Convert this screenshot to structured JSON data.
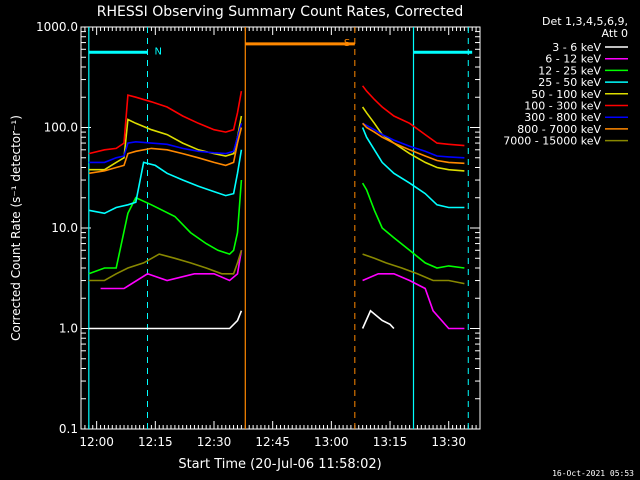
{
  "chart_data": {
    "type": "line",
    "title": "RHESSI Observing Summary Count Rates, Corrected",
    "xlabel": "Start Time (20-Jul-06 11:58:02)",
    "ylabel": "Corrected Count Rate (s⁻¹ detector⁻¹)",
    "y_scale": "log",
    "ylim": [
      0.1,
      1000
    ],
    "xlim": [
      "11:56",
      "13:38"
    ],
    "x_ticks": [
      "12:00",
      "12:15",
      "12:30",
      "12:45",
      "13:00",
      "13:15",
      "13:30"
    ],
    "y_ticks": [
      "0.1",
      "1.0",
      "10.0",
      "100.0",
      "1000.0"
    ],
    "legend_header": [
      "Det 1,3,4,5,6,9,",
      "Att 0"
    ],
    "legend_position": "right",
    "timestamp": "16-Oct-2021 05:53",
    "series": [
      {
        "name": "3 - 6 keV",
        "color": "#ffffff",
        "segments": [
          [
            [
              "11:58",
              1.0
            ],
            [
              "12:03",
              1.0
            ],
            [
              "12:09",
              1.0
            ],
            [
              "12:13",
              1.0
            ],
            [
              "12:13.5",
              1.0
            ],
            [
              "12:20",
              1.0
            ],
            [
              "12:25",
              1.0
            ],
            [
              "12:30",
              1.0
            ],
            [
              "12:34",
              1.0
            ],
            [
              "12:36",
              1.2
            ],
            [
              "12:37",
              1.5
            ]
          ],
          [
            [
              "13:08",
              1.0
            ],
            [
              "13:10",
              1.5
            ],
            [
              "13:13",
              1.2
            ],
            [
              "13:15",
              1.1
            ],
            [
              "13:16",
              1.0
            ]
          ]
        ]
      },
      {
        "name": "6 - 12 keV",
        "color": "#ff00ff",
        "segments": [
          [
            [
              "12:01",
              2.5
            ],
            [
              "12:07",
              2.5
            ],
            [
              "12:13",
              3.5
            ],
            [
              "12:18",
              3.0
            ],
            [
              "12:25",
              3.5
            ],
            [
              "12:30",
              3.5
            ],
            [
              "12:34",
              3.0
            ],
            [
              "12:36",
              3.5
            ],
            [
              "12:37",
              6
            ]
          ],
          [
            [
              "13:08",
              3.0
            ],
            [
              "13:12",
              3.5
            ],
            [
              "13:16",
              3.5
            ],
            [
              "13:20",
              3.0
            ],
            [
              "13:24",
              2.5
            ],
            [
              "13:26",
              1.5
            ],
            [
              "13:30",
              1.0
            ],
            [
              "13:34",
              1.0
            ]
          ]
        ]
      },
      {
        "name": "12 - 25 keV",
        "color": "#00ff00",
        "segments": [
          [
            [
              "11:58",
              3.5
            ],
            [
              "12:02",
              4.0
            ],
            [
              "12:05",
              4.0
            ],
            [
              "12:08",
              14
            ],
            [
              "12:10",
              20
            ],
            [
              "12:14",
              17
            ],
            [
              "12:20",
              13
            ],
            [
              "12:24",
              9
            ],
            [
              "12:28",
              7
            ],
            [
              "12:31",
              6
            ],
            [
              "12:34",
              5.5
            ],
            [
              "12:35",
              6
            ],
            [
              "12:36",
              9
            ],
            [
              "12:37",
              30
            ]
          ],
          [
            [
              "13:08",
              28
            ],
            [
              "13:09",
              24
            ],
            [
              "13:11",
              15
            ],
            [
              "13:13",
              10
            ],
            [
              "13:16",
              8
            ],
            [
              "13:20",
              6
            ],
            [
              "13:24",
              4.5
            ],
            [
              "13:27",
              4
            ],
            [
              "13:30",
              4.2
            ],
            [
              "13:34",
              4.0
            ]
          ]
        ]
      },
      {
        "name": "25 - 50 keV",
        "color": "#00ffff",
        "segments": [
          [
            [
              "11:58",
              15
            ],
            [
              "12:02",
              14
            ],
            [
              "12:05",
              16
            ],
            [
              "12:08",
              17
            ],
            [
              "12:10",
              18
            ],
            [
              "12:12",
              45
            ],
            [
              "12:15",
              42
            ],
            [
              "12:18",
              35
            ],
            [
              "12:22",
              30
            ],
            [
              "12:26",
              26
            ],
            [
              "12:30",
              23
            ],
            [
              "12:33",
              21
            ],
            [
              "12:35",
              22
            ],
            [
              "12:36",
              35
            ],
            [
              "12:37",
              60
            ]
          ],
          [
            [
              "13:08",
              100
            ],
            [
              "13:09",
              80
            ],
            [
              "13:11",
              60
            ],
            [
              "13:13",
              45
            ],
            [
              "13:16",
              35
            ],
            [
              "13:20",
              28
            ],
            [
              "13:24",
              22
            ],
            [
              "13:27",
              17
            ],
            [
              "13:30",
              16
            ],
            [
              "13:34",
              16
            ]
          ]
        ]
      },
      {
        "name": "50 - 100 keV",
        "color": "#dddd00",
        "segments": [
          [
            [
              "11:58",
              38
            ],
            [
              "12:02",
              38
            ],
            [
              "12:05",
              45
            ],
            [
              "12:07",
              50
            ],
            [
              "12:08",
              120
            ],
            [
              "12:10",
              110
            ],
            [
              "12:14",
              95
            ],
            [
              "12:18",
              85
            ],
            [
              "12:22",
              70
            ],
            [
              "12:26",
              60
            ],
            [
              "12:30",
              55
            ],
            [
              "12:33",
              52
            ],
            [
              "12:35",
              55
            ],
            [
              "12:36",
              80
            ],
            [
              "12:37",
              130
            ]
          ],
          [
            [
              "13:08",
              160
            ],
            [
              "13:09",
              140
            ],
            [
              "13:11",
              110
            ],
            [
              "13:13",
              85
            ],
            [
              "13:16",
              70
            ],
            [
              "13:20",
              55
            ],
            [
              "13:24",
              45
            ],
            [
              "13:27",
              40
            ],
            [
              "13:30",
              38
            ],
            [
              "13:34",
              37
            ]
          ]
        ]
      },
      {
        "name": "100 - 300 keV",
        "color": "#ff0000",
        "segments": [
          [
            [
              "11:58",
              55
            ],
            [
              "12:02",
              60
            ],
            [
              "12:05",
              62
            ],
            [
              "12:07",
              70
            ],
            [
              "12:08",
              210
            ],
            [
              "12:10",
              200
            ],
            [
              "12:14",
              180
            ],
            [
              "12:18",
              160
            ],
            [
              "12:22",
              130
            ],
            [
              "12:26",
              110
            ],
            [
              "12:30",
              95
            ],
            [
              "12:33",
              90
            ],
            [
              "12:35",
              95
            ],
            [
              "12:36",
              140
            ],
            [
              "12:37",
              230
            ]
          ],
          [
            [
              "13:08",
              260
            ],
            [
              "13:09",
              230
            ],
            [
              "13:11",
              190
            ],
            [
              "13:13",
              160
            ],
            [
              "13:16",
              130
            ],
            [
              "13:20",
              110
            ],
            [
              "13:24",
              85
            ],
            [
              "13:27",
              70
            ],
            [
              "13:30",
              68
            ],
            [
              "13:34",
              66
            ]
          ]
        ]
      },
      {
        "name": "300 - 800 keV",
        "color": "#0000ff",
        "segments": [
          [
            [
              "11:58",
              45
            ],
            [
              "12:02",
              45
            ],
            [
              "12:05",
              50
            ],
            [
              "12:07",
              52
            ],
            [
              "12:08",
              70
            ],
            [
              "12:10",
              72
            ],
            [
              "12:14",
              70
            ],
            [
              "12:18",
              68
            ],
            [
              "12:22",
              62
            ],
            [
              "12:26",
              58
            ],
            [
              "12:30",
              56
            ],
            [
              "12:33",
              55
            ],
            [
              "12:35",
              58
            ],
            [
              "12:36",
              80
            ],
            [
              "12:37",
              110
            ]
          ],
          [
            [
              "13:08",
              110
            ],
            [
              "13:09",
              105
            ],
            [
              "13:11",
              95
            ],
            [
              "13:13",
              85
            ],
            [
              "13:16",
              75
            ],
            [
              "13:20",
              65
            ],
            [
              "13:24",
              58
            ],
            [
              "13:27",
              52
            ],
            [
              "13:30",
              51
            ],
            [
              "13:34",
              50
            ]
          ]
        ]
      },
      {
        "name": "800 - 7000 keV",
        "color": "#ff8800",
        "segments": [
          [
            [
              "11:58",
              35
            ],
            [
              "12:02",
              37
            ],
            [
              "12:05",
              40
            ],
            [
              "12:07",
              42
            ],
            [
              "12:08",
              55
            ],
            [
              "12:10",
              58
            ],
            [
              "12:14",
              62
            ],
            [
              "12:18",
              60
            ],
            [
              "12:22",
              55
            ],
            [
              "12:26",
              50
            ],
            [
              "12:30",
              45
            ],
            [
              "12:33",
              42
            ],
            [
              "12:35",
              45
            ],
            [
              "12:36",
              70
            ],
            [
              "12:37",
              100
            ]
          ],
          [
            [
              "13:08",
              110
            ],
            [
              "13:09",
              100
            ],
            [
              "13:11",
              90
            ],
            [
              "13:13",
              80
            ],
            [
              "13:16",
              70
            ],
            [
              "13:20",
              60
            ],
            [
              "13:24",
              52
            ],
            [
              "13:27",
              47
            ],
            [
              "13:30",
              45
            ],
            [
              "13:34",
              44
            ]
          ]
        ]
      },
      {
        "name": "7000 - 15000 keV",
        "color": "#888800",
        "segments": [
          [
            [
              "11:58",
              3.0
            ],
            [
              "12:02",
              3.0
            ],
            [
              "12:05",
              3.5
            ],
            [
              "12:08",
              4.0
            ],
            [
              "12:12",
              4.5
            ],
            [
              "12:16",
              5.5
            ],
            [
              "12:20",
              5.0
            ],
            [
              "12:24",
              4.5
            ],
            [
              "12:28",
              4.0
            ],
            [
              "12:32",
              3.5
            ],
            [
              "12:35",
              3.5
            ],
            [
              "12:36",
              4.5
            ],
            [
              "12:37",
              6.0
            ]
          ],
          [
            [
              "13:08",
              5.5
            ],
            [
              "13:11",
              5.0
            ],
            [
              "13:14",
              4.5
            ],
            [
              "13:18",
              4.0
            ],
            [
              "13:22",
              3.5
            ],
            [
              "13:26",
              3.0
            ],
            [
              "13:30",
              3.0
            ],
            [
              "13:34",
              2.8
            ]
          ]
        ]
      }
    ],
    "markers": {
      "night": {
        "label": "N",
        "color": "#00ffff",
        "solid": [
          "11:58",
          "13:21"
        ],
        "dashed": [
          "12:13",
          "13:35"
        ],
        "bars": [
          [
            "11:58",
            "12:13"
          ],
          [
            "13:21",
            "13:36"
          ]
        ],
        "bar_level": 560
      },
      "saa": {
        "label": "S",
        "color": "#ff8800",
        "solid": [
          "12:38"
        ],
        "dashed": [
          "13:06"
        ],
        "bars": [
          [
            "12:38",
            "13:06"
          ]
        ],
        "bar_level": 680
      }
    }
  }
}
